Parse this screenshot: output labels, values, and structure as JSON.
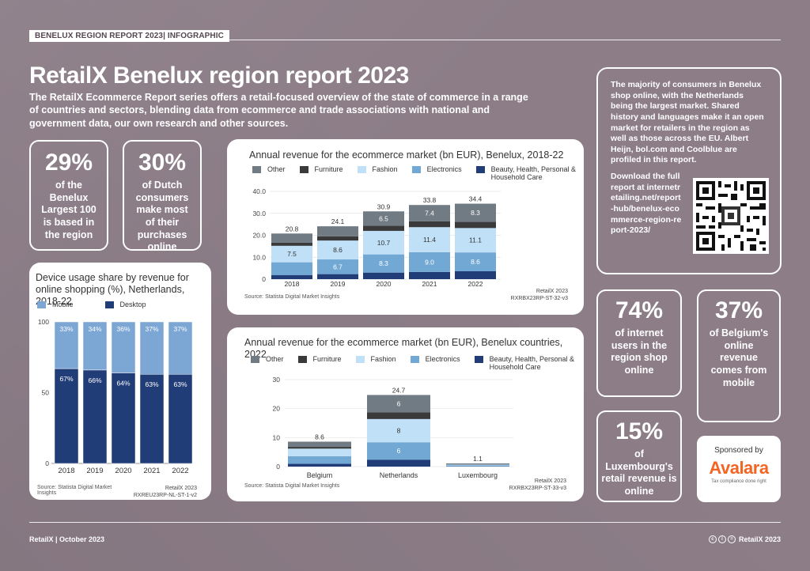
{
  "header": {
    "tag": "BENELUX REGION REPORT 2023| INFOGRAPHIC",
    "title": "RetailX Benelux region report 2023",
    "intro": "The RetailX Ecommerce Report series offers a retail-focused overview of the state of commerce in a range of countries and sectors, blending data from ecommerce and trade associations with national and government data, our own research and other sources."
  },
  "stats": {
    "s1": {
      "big": "29%",
      "txt": "of the Benelux Largest 100 is based in the region"
    },
    "s2": {
      "big": "30%",
      "txt": "of Dutch consumers make most of their purchases online"
    },
    "s3": {
      "big": "74%",
      "txt": "of internet users in the region shop online"
    },
    "s4": {
      "big": "37%",
      "txt": "of Belgium's online revenue comes from mobile"
    },
    "s5": {
      "big": "15%",
      "txt": "of Luxembourg's retail revenue is online"
    }
  },
  "info": {
    "p1": "The majority of consumers in Benelux shop online, with the Netherlands being the largest market. Shared history and languages make it an open market for retailers in the region as well as those across the EU. Albert Heijn, bol.com and Coolblue are profiled in this report.",
    "p2": "Download the full report at internetretailing.net/report-hub/benelux-ecommerce-region-report-2023/"
  },
  "sponsor": {
    "label": "Sponsored by",
    "logo": "Avalara",
    "tagline": "Tax compliance done right"
  },
  "footer": {
    "left": "RetailX | October 2023",
    "right": "RetailX 2023"
  },
  "colors": {
    "other": "#717b84",
    "furniture": "#3a3a3a",
    "fashion": "#bfe0f7",
    "electronics": "#72a8d4",
    "beauty": "#213d78",
    "mobile": "#7ca7d4",
    "desktop": "#213d78"
  },
  "chart_data": [
    {
      "type": "bar",
      "stacked": true,
      "title": "Annual revenue for the ecommerce market (bn EUR), Benelux, 2018-22",
      "categories": [
        "2018",
        "2019",
        "2020",
        "2021",
        "2022"
      ],
      "totals": [
        "20.8",
        "24.1",
        "30.9",
        "33.8",
        "34.4"
      ],
      "series": [
        {
          "name": "Beauty, Health, Personal & Household Care",
          "key": "beauty",
          "values": [
            1.9,
            2.3,
            3.0,
            3.3,
            3.6
          ],
          "labels": [
            "",
            "",
            "",
            "",
            ""
          ]
        },
        {
          "name": "Electronics",
          "key": "electronics",
          "values": [
            5.8,
            6.7,
            8.3,
            9.0,
            8.6
          ],
          "labels": [
            "",
            "6.7",
            "8.3",
            "9.0",
            "8.6"
          ]
        },
        {
          "name": "Fashion",
          "key": "fashion",
          "values": [
            7.5,
            8.6,
            10.7,
            11.4,
            11.1
          ],
          "labels": [
            "7.5",
            "8.6",
            "10.7",
            "11.4",
            "11.1"
          ]
        },
        {
          "name": "Furniture",
          "key": "furniture",
          "values": [
            1.4,
            1.9,
            2.4,
            2.7,
            2.8
          ],
          "labels": [
            "",
            "",
            "",
            "",
            ""
          ]
        },
        {
          "name": "Other",
          "key": "other",
          "values": [
            4.2,
            4.6,
            6.5,
            7.4,
            8.3
          ],
          "labels": [
            "",
            "",
            "6.5",
            "7.4",
            "8.3"
          ]
        }
      ],
      "yticks": [
        "0",
        "10.0",
        "20.0",
        "30.0",
        "40.0"
      ],
      "ylim": [
        0,
        40
      ],
      "source": "Source: Statista Digital Market Insights",
      "brand": "RetailX 2023",
      "code": "RXRBX23RP-ST-32-v3"
    },
    {
      "type": "bar",
      "stacked": true,
      "title": "Device usage share by revenue for online shopping (%), Netherlands, 2018-22",
      "categories": [
        "2018",
        "2019",
        "2020",
        "2021",
        "2022"
      ],
      "series": [
        {
          "name": "Desktop",
          "key": "desktop",
          "values": [
            67,
            66,
            64,
            63,
            63
          ],
          "labels": [
            "67%",
            "66%",
            "64%",
            "63%",
            "63%"
          ]
        },
        {
          "name": "Mobile",
          "key": "mobile",
          "values": [
            33,
            34,
            36,
            37,
            37
          ],
          "labels": [
            "33%",
            "34%",
            "36%",
            "37%",
            "37%"
          ]
        }
      ],
      "yticks": [
        "0",
        "50",
        "100"
      ],
      "ylim": [
        0,
        100
      ],
      "source": "Source: Statista Digital Market Insights",
      "brand": "RetailX 2023",
      "code": "RXREU23RP-NL-ST-1-v2"
    },
    {
      "type": "bar",
      "stacked": true,
      "title": "Annual revenue for the ecommerce market (bn EUR), Benelux countries, 2022",
      "categories": [
        "Belgium",
        "Netherlands",
        "Luxembourg"
      ],
      "totals": [
        "8.6",
        "24.7",
        "1.1"
      ],
      "series": [
        {
          "name": "Beauty, Health, Personal & Household Care",
          "key": "beauty",
          "values": [
            1.0,
            2.4,
            0.1
          ],
          "labels": [
            "",
            "",
            ""
          ]
        },
        {
          "name": "Electronics",
          "key": "electronics",
          "values": [
            2.6,
            6,
            0.3
          ],
          "labels": [
            "",
            "6",
            ""
          ]
        },
        {
          "name": "Fashion",
          "key": "fashion",
          "values": [
            2.6,
            8,
            0.3
          ],
          "labels": [
            "",
            "8",
            ""
          ]
        },
        {
          "name": "Furniture",
          "key": "furniture",
          "values": [
            0.6,
            2.3,
            0.1
          ],
          "labels": [
            "",
            "",
            ""
          ]
        },
        {
          "name": "Other",
          "key": "other",
          "values": [
            1.8,
            6,
            0.3
          ],
          "labels": [
            "",
            "6",
            ""
          ]
        }
      ],
      "yticks": [
        "0",
        "10",
        "20",
        "30"
      ],
      "ylim": [
        0,
        30
      ],
      "source": "Source: Statista Digital Market Insights",
      "brand": "RetailX 2023",
      "code": "RXRBX23RP-ST-33-v3"
    }
  ],
  "legends": {
    "revenue": [
      {
        "key": "other",
        "label": "Other"
      },
      {
        "key": "furniture",
        "label": "Furniture"
      },
      {
        "key": "fashion",
        "label": "Fashion"
      },
      {
        "key": "electronics",
        "label": "Electronics"
      },
      {
        "key": "beauty",
        "label": "Beauty, Health, Personal & Household Care"
      }
    ],
    "device": [
      {
        "key": "mobile",
        "label": "Mobile"
      },
      {
        "key": "desktop",
        "label": "Desktop"
      }
    ]
  }
}
